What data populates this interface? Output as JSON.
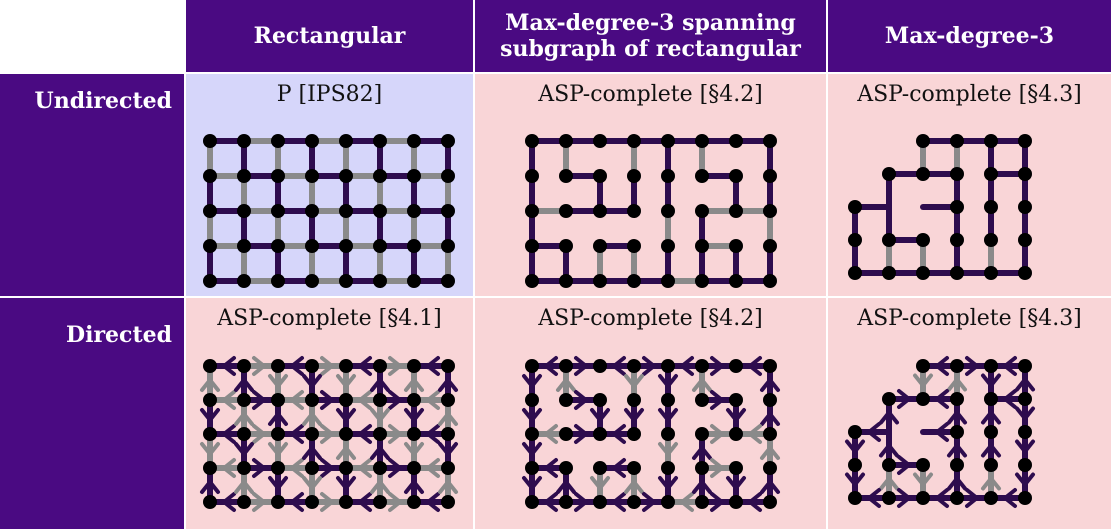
{
  "columns": [
    "Rectangular",
    "Max-degree-3 spanning subgraph of rectangular",
    "Max-degree-3"
  ],
  "column_lines": [
    [
      "Rectangular"
    ],
    [
      "Max-degree-3 spanning",
      "subgraph of rectangular"
    ],
    [
      "Max-degree-3"
    ]
  ],
  "rows": [
    "Undirected",
    "Directed"
  ],
  "cells": [
    [
      "P [IPS82]",
      "ASP-complete [§4.2]",
      "ASP-complete [§4.3]"
    ],
    [
      "ASP-complete [§4.1]",
      "ASP-complete [§4.2]",
      "ASP-complete [§4.3]"
    ]
  ],
  "colors": {
    "header_bg": "#4a0a82",
    "header_text": "#ffffff",
    "blue_cell": "#d6d6fa",
    "pink_cell": "#f9d5d7",
    "edge_dark": "#2e0c4e",
    "edge_gray": "#8a8a8a",
    "node": "#000000"
  }
}
